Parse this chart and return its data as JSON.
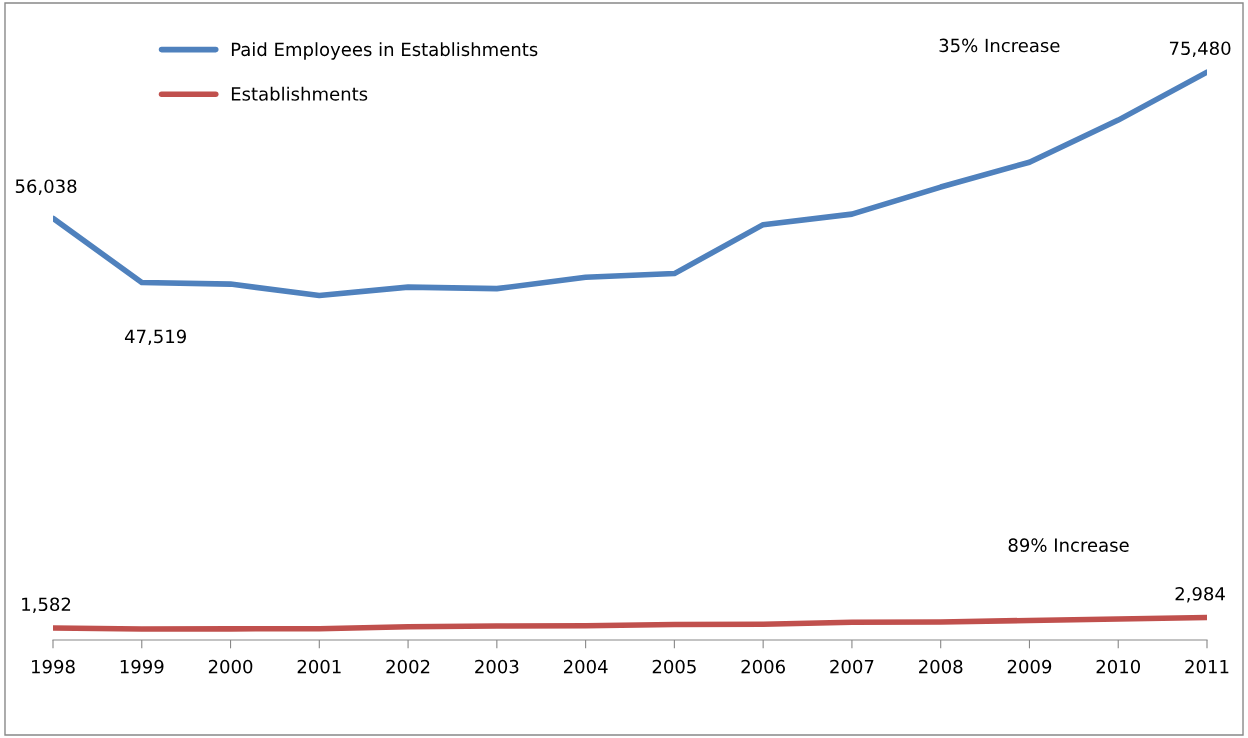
{
  "chart_data": {
    "type": "line",
    "categories": [
      "1998",
      "1999",
      "2000",
      "2001",
      "2002",
      "2003",
      "2004",
      "2005",
      "2006",
      "2007",
      "2008",
      "2009",
      "2010",
      "2011"
    ],
    "series": [
      {
        "name": "Paid Employees in Establishments",
        "color": "#4f81bd",
        "values": [
          56038,
          47519,
          47300,
          45800,
          46900,
          46700,
          48200,
          48700,
          55200,
          56600,
          60200,
          63500,
          69100,
          75480
        ],
        "value_labels": [
          "56,038",
          "47,519",
          null,
          null,
          null,
          null,
          null,
          null,
          null,
          null,
          null,
          null,
          null,
          "75,480"
        ]
      },
      {
        "name": "Establishments",
        "color": "#c0504d",
        "values": [
          1582,
          1450,
          1480,
          1500,
          1750,
          1850,
          1900,
          2050,
          2100,
          2350,
          2400,
          2600,
          2800,
          2984
        ],
        "value_labels": [
          "1,582",
          null,
          null,
          null,
          null,
          null,
          null,
          null,
          null,
          null,
          null,
          null,
          null,
          "2,984"
        ]
      }
    ],
    "tick_labels": "x",
    "legend": "top left",
    "grid": false,
    "marker": "none",
    "line_style": "solid",
    "annotations": [
      "35% Increase",
      "89% Increase"
    ]
  }
}
